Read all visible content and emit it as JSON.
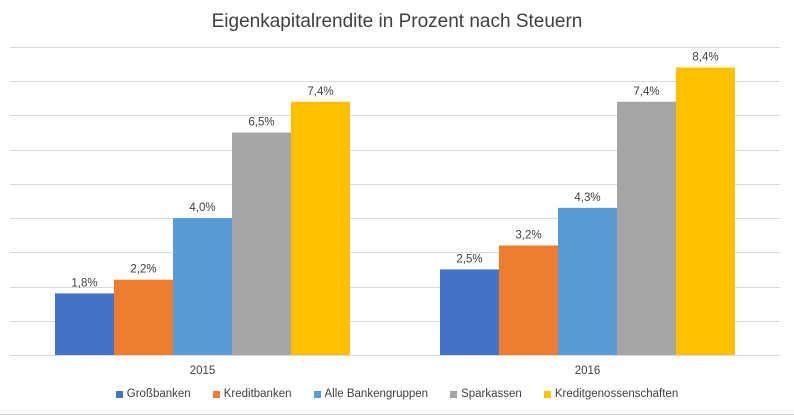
{
  "chart_data": {
    "type": "bar",
    "title": "Eigenkapitalrendite in Prozent nach Steuern",
    "xlabel": "",
    "ylabel": "",
    "ylim": [
      0,
      9
    ],
    "grid": true,
    "legend_position": "bottom",
    "categories": [
      "2015",
      "2016"
    ],
    "series": [
      {
        "name": "Großbanken",
        "color": "#4472C4",
        "values": [
          1.8,
          2.5
        ],
        "labels": [
          "1,8%",
          "2,5%"
        ]
      },
      {
        "name": "Kreditbanken",
        "color": "#ED7D31",
        "values": [
          2.2,
          3.2
        ],
        "labels": [
          "2,2%",
          "3,2%"
        ]
      },
      {
        "name": "Alle Bankengruppen",
        "color": "#5B9BD5",
        "values": [
          4.0,
          4.3
        ],
        "labels": [
          "4,0%",
          "4,3%"
        ]
      },
      {
        "name": "Sparkassen",
        "color": "#A5A5A5",
        "values": [
          6.5,
          7.4
        ],
        "labels": [
          "6,5%",
          "7,4%"
        ]
      },
      {
        "name": "Kreditgenossenschaften",
        "color": "#FFC000",
        "values": [
          7.4,
          8.4
        ],
        "labels": [
          "7,4%",
          "8,4%"
        ]
      }
    ]
  }
}
